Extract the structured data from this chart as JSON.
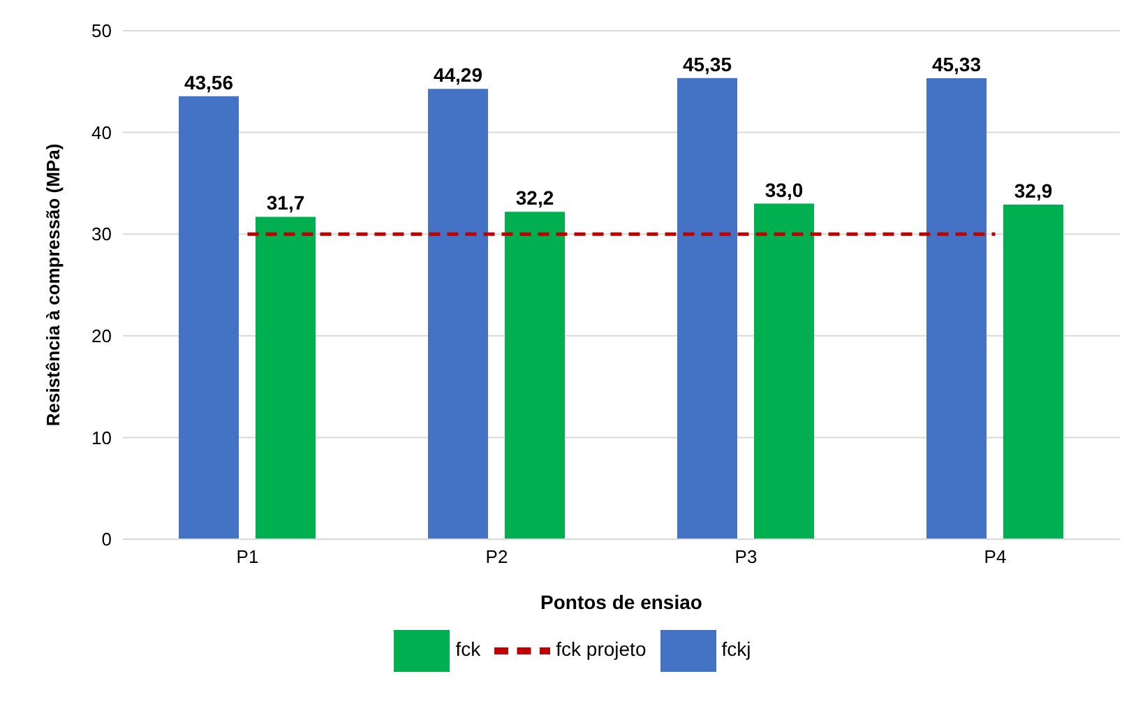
{
  "chart_data": {
    "type": "bar",
    "xlabel": "Pontos de ensiao",
    "ylabel": "Resistência à compressão (MPa)",
    "categories": [
      "P1",
      "P2",
      "P3",
      "P4"
    ],
    "series": [
      {
        "name": "fckj",
        "color": "#4472c4",
        "values": [
          43.56,
          44.29,
          45.35,
          45.33
        ],
        "value_labels": [
          "43,56",
          "44,29",
          "45,35",
          "45,33"
        ]
      },
      {
        "name": "fck",
        "color": "#00b050",
        "values": [
          31.7,
          32.2,
          33.0,
          32.9
        ],
        "value_labels": [
          "31,7",
          "32,2",
          "33,0",
          "32,9"
        ]
      },
      {
        "name": "fck projeto",
        "type": "line",
        "color": "#c00000",
        "line_style": "dashed",
        "marker": "none",
        "values": [
          30,
          30,
          30,
          30
        ]
      }
    ],
    "ylim": [
      0,
      50
    ],
    "yticks": [
      0,
      10,
      20,
      30,
      40,
      50
    ],
    "grid": "y",
    "legend": "bottom"
  }
}
